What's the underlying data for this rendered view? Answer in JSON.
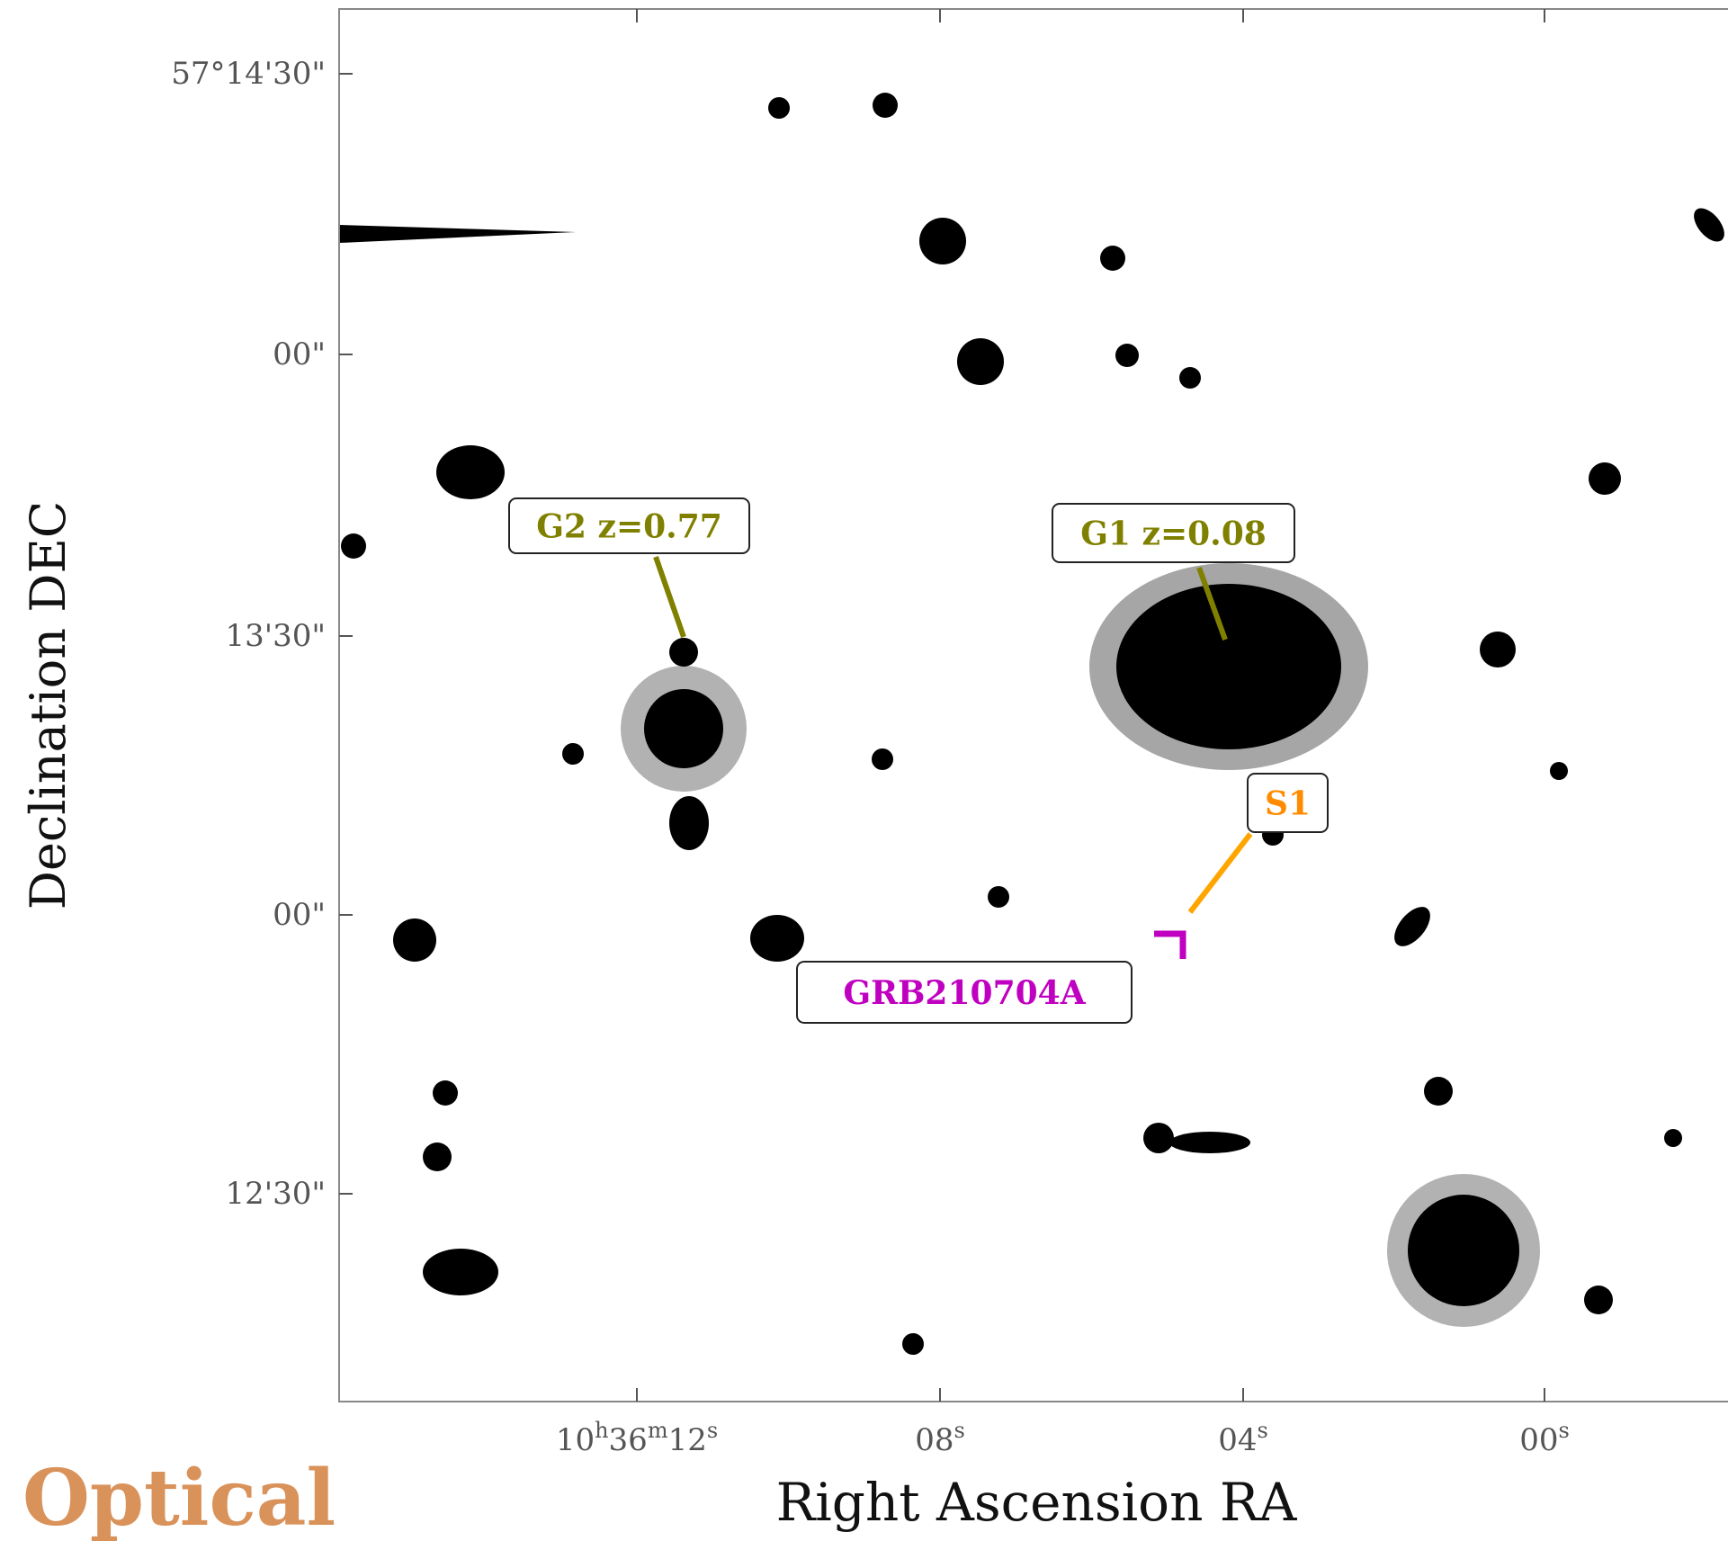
{
  "figure": {
    "y_axis_label": "Declination DEC",
    "x_axis_label": "Right Ascension RA",
    "y_tick_labels": [
      "57°14'30\"",
      "00\"",
      "13'30\"",
      "00\"",
      "12'30\""
    ],
    "x_tick_labels": [
      [
        "10",
        "h",
        "36",
        "m",
        "12",
        "s"
      ],
      [
        "08",
        "s"
      ],
      [
        "04",
        "s"
      ],
      [
        "00",
        "s"
      ]
    ],
    "annotations": [
      {
        "text": "G2 z=0.77",
        "color": "#808000"
      },
      {
        "text": "G1 z=0.08",
        "color": "#808000"
      },
      {
        "text": "S1",
        "color": "#ff8c00"
      },
      {
        "text": "GRB210704A",
        "color": "#c000c0"
      }
    ],
    "panel_label": "Optical"
  }
}
